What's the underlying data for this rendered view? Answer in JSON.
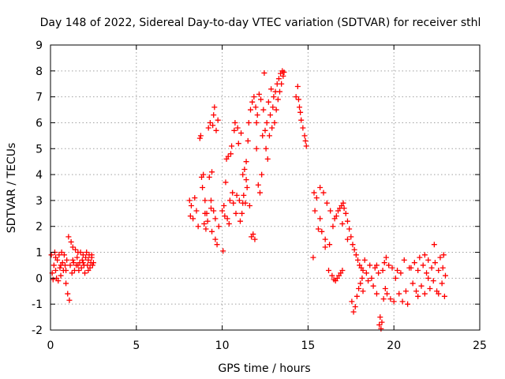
{
  "chart_data": {
    "type": "scatter",
    "title": "Day 148 of 2022, Sidereal Day-to-day VTEC variation (SDTVAR) for receiver sthl",
    "xlabel": "GPS time / hours",
    "ylabel": "SDTVAR / TECUs",
    "xlim": [
      0,
      25
    ],
    "ylim": [
      -2,
      9
    ],
    "xticks": [
      0,
      5,
      10,
      15,
      20,
      25
    ],
    "yticks": [
      -2,
      -1,
      0,
      1,
      2,
      3,
      4,
      5,
      6,
      7,
      8,
      9
    ],
    "xtick_labels": [
      "0",
      "5",
      "10",
      "15",
      "20",
      "25"
    ],
    "ytick_labels": [
      "-2",
      "-1",
      "0",
      "1",
      "2",
      "3",
      "4",
      "5",
      "6",
      "7",
      "8",
      "9"
    ],
    "grid": true,
    "legend": "none",
    "marker": "+",
    "marker_color": "#ff0000",
    "series": [
      {
        "name": "SDTVAR",
        "points": [
          [
            0.05,
            0.9
          ],
          [
            0.1,
            0.2
          ],
          [
            0.15,
            -0.05
          ],
          [
            0.2,
            0.5
          ],
          [
            0.25,
            1.0
          ],
          [
            0.3,
            0.3
          ],
          [
            0.35,
            0.0
          ],
          [
            0.4,
            0.7
          ],
          [
            0.45,
            -0.1
          ],
          [
            0.5,
            0.9
          ],
          [
            0.55,
            0.4
          ],
          [
            0.6,
            0.1
          ],
          [
            0.65,
            1.0
          ],
          [
            0.7,
            0.6
          ],
          [
            0.75,
            0.3
          ],
          [
            0.8,
            0.9
          ],
          [
            0.85,
            0.5
          ],
          [
            0.9,
            -0.2
          ],
          [
            0.95,
            0.7
          ],
          [
            1.0,
            -0.6
          ],
          [
            1.05,
            1.6
          ],
          [
            1.1,
            -0.85
          ],
          [
            1.15,
            0.5
          ],
          [
            1.2,
            1.4
          ],
          [
            1.25,
            0.2
          ],
          [
            1.3,
            1.2
          ],
          [
            1.35,
            0.6
          ],
          [
            1.4,
            0.3
          ],
          [
            1.45,
            1.1
          ],
          [
            1.5,
            0.5
          ],
          [
            1.55,
            0.8
          ],
          [
            1.6,
            1.0
          ],
          [
            1.65,
            0.3
          ],
          [
            1.7,
            0.6
          ],
          [
            1.75,
            1.0
          ],
          [
            1.8,
            0.4
          ],
          [
            1.85,
            0.7
          ],
          [
            1.9,
            0.9
          ],
          [
            1.95,
            0.5
          ],
          [
            2.0,
            0.2
          ],
          [
            2.05,
            0.8
          ],
          [
            2.1,
            1.0
          ],
          [
            2.15,
            0.5
          ],
          [
            2.2,
            0.7
          ],
          [
            2.25,
            0.9
          ],
          [
            2.3,
            0.4
          ],
          [
            2.35,
            0.6
          ],
          [
            2.4,
            0.8
          ],
          [
            2.45,
            0.5
          ],
          [
            2.5,
            0.6
          ],
          [
            0.3,
            0.8
          ],
          [
            0.6,
            0.5
          ],
          [
            0.9,
            0.3
          ],
          [
            1.3,
            0.7
          ],
          [
            1.6,
            0.5
          ],
          [
            1.9,
            0.6
          ],
          [
            2.2,
            0.3
          ],
          [
            2.4,
            0.9
          ],
          [
            8.1,
            3.0
          ],
          [
            8.15,
            2.4
          ],
          [
            8.2,
            2.8
          ],
          [
            8.3,
            2.3
          ],
          [
            8.4,
            3.1
          ],
          [
            8.5,
            2.6
          ],
          [
            8.7,
            5.4
          ],
          [
            8.75,
            5.5
          ],
          [
            8.8,
            3.9
          ],
          [
            8.85,
            3.5
          ],
          [
            8.9,
            4.0
          ],
          [
            8.95,
            2.1
          ],
          [
            9.0,
            3.0
          ],
          [
            9.05,
            1.9
          ],
          [
            9.1,
            2.5
          ],
          [
            9.15,
            2.2
          ],
          [
            9.2,
            5.8
          ],
          [
            9.25,
            3.9
          ],
          [
            9.3,
            6.0
          ],
          [
            9.35,
            2.7
          ],
          [
            9.4,
            1.8
          ],
          [
            9.45,
            5.9
          ],
          [
            9.5,
            6.3
          ],
          [
            9.55,
            6.6
          ],
          [
            9.6,
            1.5
          ],
          [
            9.65,
            5.7
          ],
          [
            9.7,
            1.3
          ],
          [
            9.75,
            6.1
          ],
          [
            9.8,
            2.0
          ],
          [
            9.4,
            4.1
          ],
          [
            9.35,
            3.0
          ],
          [
            9.5,
            2.6
          ],
          [
            9.6,
            2.3
          ],
          [
            8.6,
            2.0
          ],
          [
            9.0,
            2.5
          ],
          [
            10.0,
            2.6
          ],
          [
            10.05,
            1.05
          ],
          [
            10.1,
            2.8
          ],
          [
            10.15,
            2.4
          ],
          [
            10.2,
            3.7
          ],
          [
            10.25,
            4.6
          ],
          [
            10.3,
            2.3
          ],
          [
            10.35,
            4.7
          ],
          [
            10.4,
            2.1
          ],
          [
            10.45,
            3.0
          ],
          [
            10.5,
            4.8
          ],
          [
            10.55,
            5.1
          ],
          [
            10.6,
            3.3
          ],
          [
            10.65,
            2.9
          ],
          [
            10.7,
            5.7
          ],
          [
            10.75,
            6.0
          ],
          [
            10.8,
            2.5
          ],
          [
            10.85,
            3.2
          ],
          [
            10.9,
            5.8
          ],
          [
            10.95,
            5.2
          ],
          [
            11.0,
            3.0
          ],
          [
            11.05,
            2.2
          ],
          [
            11.1,
            5.6
          ],
          [
            11.15,
            2.5
          ],
          [
            11.2,
            4.0
          ],
          [
            11.25,
            3.2
          ],
          [
            11.3,
            4.2
          ],
          [
            11.35,
            2.9
          ],
          [
            11.4,
            4.5
          ],
          [
            11.45,
            3.5
          ],
          [
            11.5,
            5.3
          ],
          [
            11.55,
            6.0
          ],
          [
            11.6,
            2.8
          ],
          [
            11.65,
            6.5
          ],
          [
            11.7,
            1.6
          ],
          [
            11.75,
            6.8
          ],
          [
            11.8,
            1.7
          ],
          [
            11.85,
            7.0
          ],
          [
            11.9,
            1.5
          ],
          [
            11.95,
            6.6
          ],
          [
            12.0,
            5.0
          ],
          [
            12.05,
            6.3
          ],
          [
            12.1,
            3.6
          ],
          [
            12.15,
            7.1
          ],
          [
            12.2,
            3.3
          ],
          [
            12.25,
            6.9
          ],
          [
            12.3,
            4.0
          ],
          [
            12.35,
            5.5
          ],
          [
            12.4,
            6.5
          ],
          [
            12.45,
            7.92
          ],
          [
            12.5,
            5.7
          ],
          [
            12.55,
            5.0
          ],
          [
            12.6,
            6.0
          ],
          [
            12.65,
            4.6
          ],
          [
            12.7,
            6.8
          ],
          [
            12.75,
            5.5
          ],
          [
            12.8,
            6.3
          ],
          [
            12.85,
            7.3
          ],
          [
            12.9,
            5.8
          ],
          [
            12.95,
            6.6
          ],
          [
            13.0,
            7.0
          ],
          [
            13.05,
            6.0
          ],
          [
            13.1,
            7.2
          ],
          [
            13.15,
            6.5
          ],
          [
            13.2,
            7.5
          ],
          [
            13.25,
            6.9
          ],
          [
            13.3,
            7.7
          ],
          [
            13.35,
            7.2
          ],
          [
            13.4,
            7.9
          ],
          [
            13.45,
            7.5
          ],
          [
            13.5,
            8.0
          ],
          [
            13.55,
            7.8
          ],
          [
            13.6,
            7.95
          ],
          [
            11.4,
            3.8
          ],
          [
            11.2,
            2.9
          ],
          [
            12.0,
            6.0
          ],
          [
            14.3,
            7.0
          ],
          [
            14.4,
            7.4
          ],
          [
            14.5,
            6.6
          ],
          [
            14.6,
            6.1
          ],
          [
            14.7,
            5.8
          ],
          [
            14.8,
            5.5
          ],
          [
            14.9,
            5.1
          ],
          [
            14.85,
            5.3
          ],
          [
            14.45,
            6.9
          ],
          [
            14.55,
            6.4
          ],
          [
            15.3,
            0.8
          ],
          [
            15.35,
            3.3
          ],
          [
            15.4,
            2.6
          ],
          [
            15.5,
            3.1
          ],
          [
            15.6,
            1.9
          ],
          [
            15.7,
            3.5
          ],
          [
            15.8,
            1.8
          ],
          [
            15.9,
            3.3
          ],
          [
            16.0,
            1.5
          ],
          [
            16.1,
            2.9
          ],
          [
            16.2,
            0.3
          ],
          [
            16.25,
            1.3
          ],
          [
            16.3,
            2.6
          ],
          [
            16.4,
            0.1
          ],
          [
            16.45,
            2.0
          ],
          [
            16.5,
            -0.05
          ],
          [
            16.55,
            2.3
          ],
          [
            16.6,
            -0.1
          ],
          [
            16.65,
            2.4
          ],
          [
            16.7,
            0.0
          ],
          [
            16.75,
            2.6
          ],
          [
            16.8,
            0.1
          ],
          [
            16.85,
            2.7
          ],
          [
            16.9,
            0.2
          ],
          [
            16.95,
            2.8
          ],
          [
            17.0,
            0.3
          ],
          [
            17.05,
            2.9
          ],
          [
            17.1,
            2.7
          ],
          [
            17.2,
            2.5
          ],
          [
            17.3,
            2.2
          ],
          [
            17.4,
            1.9
          ],
          [
            17.5,
            1.6
          ],
          [
            17.55,
            -0.9
          ],
          [
            17.6,
            1.3
          ],
          [
            17.65,
            -1.3
          ],
          [
            17.7,
            1.1
          ],
          [
            17.75,
            -1.1
          ],
          [
            17.8,
            0.9
          ],
          [
            17.85,
            -0.7
          ],
          [
            17.9,
            0.7
          ],
          [
            17.95,
            -0.4
          ],
          [
            18.0,
            0.5
          ],
          [
            18.05,
            -0.2
          ],
          [
            18.1,
            0.4
          ],
          [
            18.15,
            0.0
          ],
          [
            18.2,
            0.3
          ],
          [
            18.3,
            0.7
          ],
          [
            18.4,
            0.2
          ],
          [
            18.5,
            -0.1
          ],
          [
            18.6,
            0.5
          ],
          [
            18.7,
            0.0
          ],
          [
            18.8,
            -0.3
          ],
          [
            18.9,
            0.4
          ],
          [
            19.0,
            -0.6
          ],
          [
            19.1,
            0.2
          ],
          [
            19.15,
            -1.8
          ],
          [
            19.2,
            -1.5
          ],
          [
            19.25,
            -1.95
          ],
          [
            19.3,
            -1.7
          ],
          [
            19.35,
            0.3
          ],
          [
            19.4,
            -0.8
          ],
          [
            19.45,
            0.6
          ],
          [
            19.5,
            -0.4
          ],
          [
            19.55,
            0.8
          ],
          [
            19.6,
            -0.6
          ],
          [
            19.7,
            0.5
          ],
          [
            19.8,
            -0.8
          ],
          [
            19.9,
            0.4
          ],
          [
            20.0,
            -0.9
          ],
          [
            20.1,
            0.0
          ],
          [
            20.2,
            0.3
          ],
          [
            20.3,
            -0.6
          ],
          [
            20.4,
            0.2
          ],
          [
            20.5,
            -0.9
          ],
          [
            20.6,
            0.7
          ],
          [
            20.7,
            -0.5
          ],
          [
            20.8,
            -1.0
          ],
          [
            20.9,
            0.4
          ],
          [
            16.0,
            1.2
          ],
          [
            15.7,
            2.3
          ],
          [
            17.0,
            2.1
          ],
          [
            17.3,
            1.5
          ],
          [
            18.2,
            -0.5
          ],
          [
            19.0,
            0.5
          ],
          [
            21.0,
            0.4
          ],
          [
            21.1,
            -0.2
          ],
          [
            21.2,
            0.6
          ],
          [
            21.3,
            -0.5
          ],
          [
            21.4,
            0.3
          ],
          [
            21.5,
            0.8
          ],
          [
            21.6,
            -0.3
          ],
          [
            21.7,
            0.5
          ],
          [
            21.8,
            -0.6
          ],
          [
            21.9,
            0.2
          ],
          [
            22.0,
            0.7
          ],
          [
            22.1,
            -0.4
          ],
          [
            22.2,
            0.4
          ],
          [
            22.3,
            -0.1
          ],
          [
            22.35,
            1.3
          ],
          [
            22.4,
            0.6
          ],
          [
            22.5,
            -0.5
          ],
          [
            22.6,
            0.3
          ],
          [
            22.7,
            0.8
          ],
          [
            22.8,
            -0.2
          ],
          [
            22.85,
            0.4
          ],
          [
            22.9,
            0.9
          ],
          [
            22.95,
            -0.7
          ],
          [
            23.0,
            0.1
          ],
          [
            21.8,
            0.9
          ],
          [
            22.0,
            0.0
          ],
          [
            22.6,
            -0.6
          ],
          [
            21.4,
            -0.7
          ]
        ]
      }
    ]
  }
}
